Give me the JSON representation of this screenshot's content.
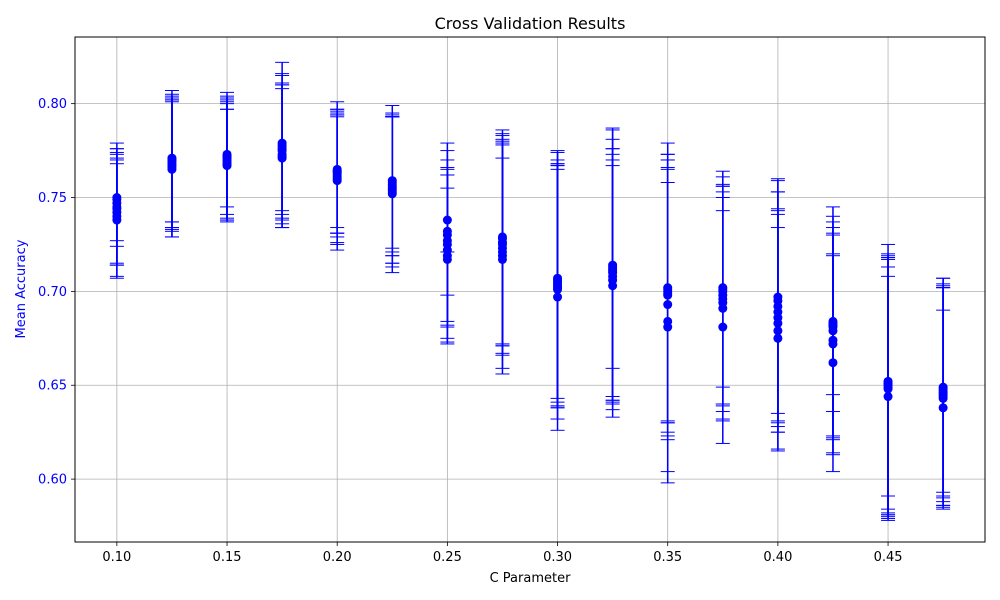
{
  "chart_data": {
    "type": "scatter",
    "title": "Cross Validation Results",
    "xlabel": "C Parameter",
    "ylabel": "Mean Accuracy",
    "xlim": [
      0.081,
      0.494
    ],
    "ylim": [
      0.5665,
      0.8355
    ],
    "x_ticks": [
      "0.10",
      "0.15",
      "0.20",
      "0.25",
      "0.30",
      "0.35",
      "0.40",
      "0.45"
    ],
    "y_ticks": [
      "0.60",
      "0.65",
      "0.70",
      "0.75",
      "0.80"
    ],
    "grid": true,
    "color": "#0000ff",
    "ylabel_color": "#0000ff",
    "ytick_color": "#0000ff",
    "series": [
      {
        "x": 0.1,
        "means": [
          0.738,
          0.74,
          0.742,
          0.744,
          0.745,
          0.747,
          0.749,
          0.75
        ],
        "errors": [
          0.03,
          0.033,
          0.028,
          0.03,
          0.031,
          0.032,
          0.022,
          0.026
        ]
      },
      {
        "x": 0.125,
        "means": [
          0.765,
          0.766,
          0.767,
          0.768,
          0.769,
          0.77,
          0.771,
          0.77
        ],
        "errors": [
          0.036,
          0.037,
          0.035,
          0.034,
          0.035,
          0.037,
          0.034,
          0.033
        ]
      },
      {
        "x": 0.15,
        "means": [
          0.767,
          0.768,
          0.769,
          0.77,
          0.771,
          0.772,
          0.773,
          0.772
        ],
        "errors": [
          0.03,
          0.029,
          0.031,
          0.032,
          0.033,
          0.034,
          0.028,
          0.031
        ]
      },
      {
        "x": 0.175,
        "means": [
          0.771,
          0.772,
          0.773,
          0.775,
          0.776,
          0.777,
          0.778,
          0.779
        ],
        "errors": [
          0.037,
          0.038,
          0.037,
          0.036,
          0.035,
          0.039,
          0.044,
          0.036
        ]
      },
      {
        "x": 0.2,
        "means": [
          0.759,
          0.76,
          0.761,
          0.762,
          0.763,
          0.764,
          0.765,
          0.764
        ],
        "errors": [
          0.037,
          0.034,
          0.036,
          0.031,
          0.032,
          0.033,
          0.036,
          0.03
        ]
      },
      {
        "x": 0.225,
        "means": [
          0.752,
          0.753,
          0.754,
          0.755,
          0.756,
          0.757,
          0.758,
          0.759
        ],
        "errors": [
          0.042,
          0.04,
          0.039,
          0.04,
          0.037,
          0.036,
          0.035,
          0.04
        ]
      },
      {
        "x": 0.25,
        "means": [
          0.717,
          0.719,
          0.722,
          0.725,
          0.727,
          0.73,
          0.732,
          0.738
        ],
        "errors": [
          0.045,
          0.046,
          0.04,
          0.05,
          0.043,
          0.049,
          0.034,
          0.017
        ]
      },
      {
        "x": 0.275,
        "means": [
          0.717,
          0.719,
          0.721,
          0.723,
          0.725,
          0.726,
          0.728,
          0.729
        ],
        "errors": [
          0.061,
          0.06,
          0.05,
          0.057,
          0.058,
          0.055,
          0.056,
          0.057
        ]
      },
      {
        "x": 0.3,
        "means": [
          0.697,
          0.701,
          0.702,
          0.703,
          0.704,
          0.705,
          0.706,
          0.707
        ],
        "errors": [
          0.071,
          0.069,
          0.063,
          0.065,
          0.063,
          0.062,
          0.068,
          0.068
        ]
      },
      {
        "x": 0.325,
        "means": [
          0.703,
          0.706,
          0.708,
          0.71,
          0.711,
          0.712,
          0.713,
          0.714
        ],
        "errors": [
          0.07,
          0.064,
          0.068,
          0.066,
          0.07,
          0.075,
          0.054,
          0.072
        ]
      },
      {
        "x": 0.35,
        "means": [
          0.681,
          0.684,
          0.693,
          0.698,
          0.699,
          0.7,
          0.701,
          0.702
        ],
        "errors": [
          0.077,
          0.086,
          0.072,
          0.068,
          0.074,
          0.07,
          0.078,
          0.071
        ]
      },
      {
        "x": 0.375,
        "means": [
          0.681,
          0.691,
          0.694,
          0.696,
          0.698,
          0.7,
          0.701,
          0.702
        ],
        "errors": [
          0.062,
          0.059,
          0.063,
          0.06,
          0.058,
          0.061,
          0.052,
          0.062
        ]
      },
      {
        "x": 0.4,
        "means": [
          0.675,
          0.679,
          0.683,
          0.686,
          0.689,
          0.692,
          0.695,
          0.697
        ],
        "errors": [
          0.059,
          0.064,
          0.058,
          0.058,
          0.064,
          0.061,
          0.065,
          0.062
        ]
      },
      {
        "x": 0.425,
        "means": [
          0.662,
          0.672,
          0.674,
          0.679,
          0.681,
          0.682,
          0.683,
          0.684
        ],
        "errors": [
          0.058,
          0.059,
          0.06,
          0.058,
          0.059,
          0.037,
          0.047,
          0.061
        ]
      },
      {
        "x": 0.45,
        "means": [
          0.644,
          0.648,
          0.649,
          0.65,
          0.651,
          0.651,
          0.652,
          0.652
        ],
        "errors": [
          0.064,
          0.07,
          0.068,
          0.069,
          0.069,
          0.067,
          0.073,
          0.061
        ]
      },
      {
        "x": 0.475,
        "means": [
          0.638,
          0.643,
          0.644,
          0.645,
          0.646,
          0.647,
          0.648,
          0.649
        ],
        "errors": [
          0.052,
          0.059,
          0.058,
          0.057,
          0.061,
          0.057,
          0.055,
          0.058
        ]
      }
    ]
  }
}
